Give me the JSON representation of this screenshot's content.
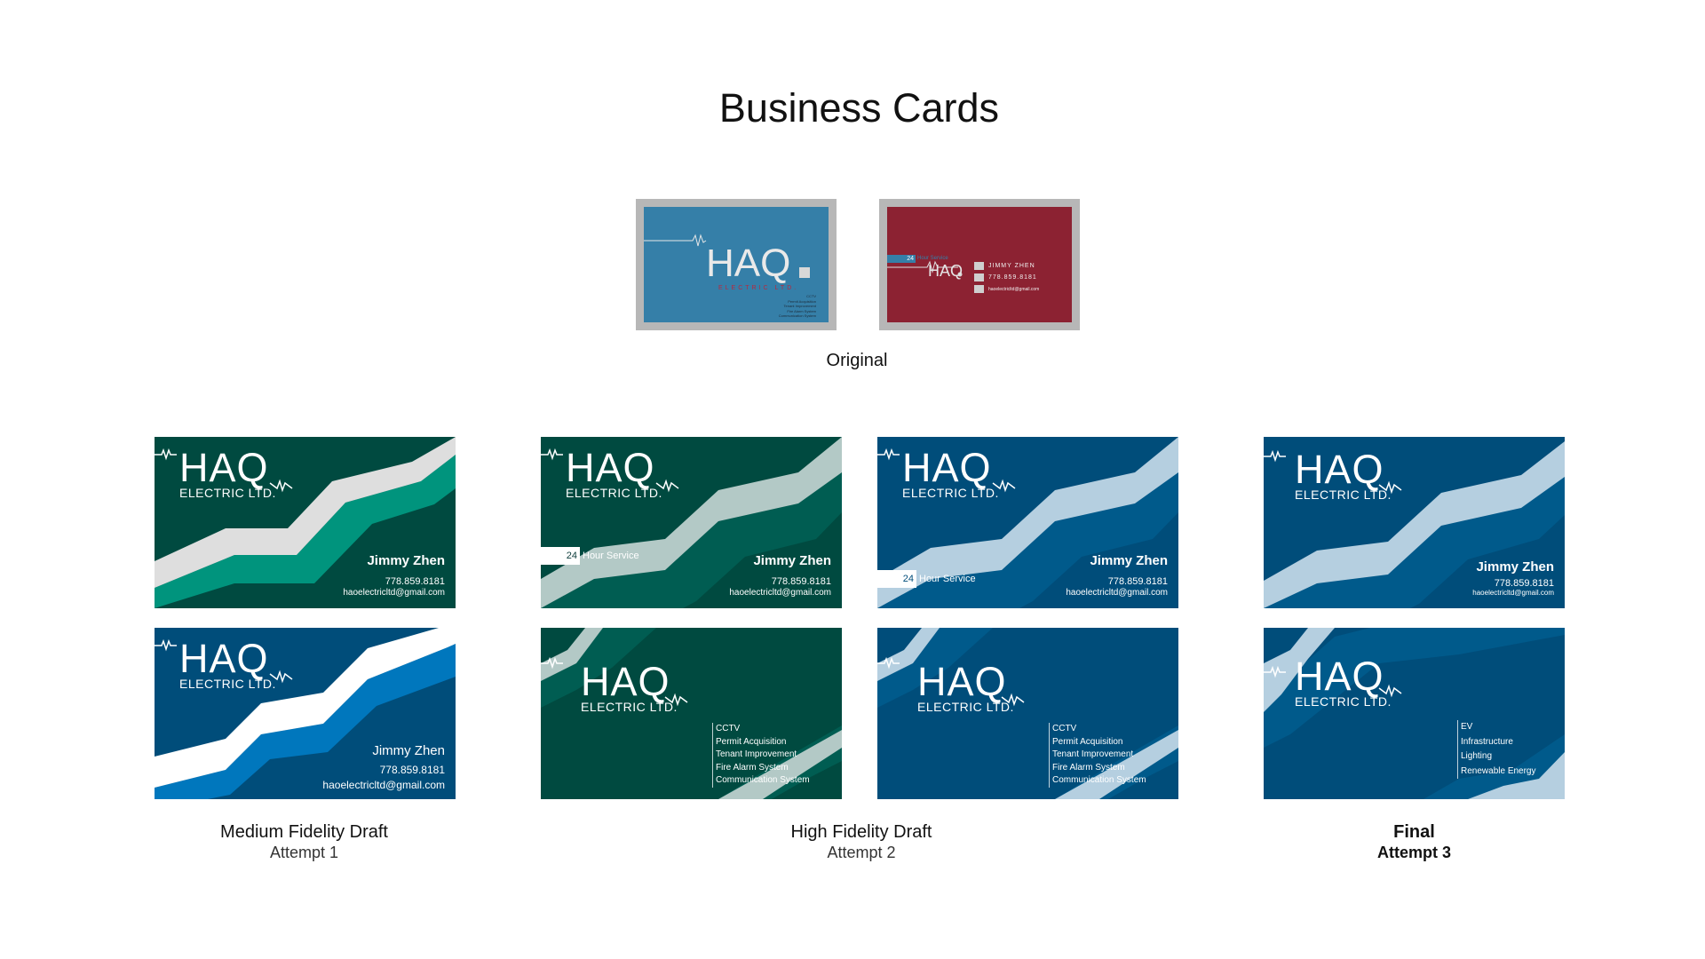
{
  "page_title": "Business Cards",
  "original": {
    "caption": "Original",
    "front": {
      "logo": "HAQ",
      "sub": "ELECTRIC LTD.",
      "services": [
        "CCTV",
        "Permit Acquisition",
        "Tenant Improvement",
        "Fire Alarm System",
        "Communication System"
      ]
    },
    "back": {
      "badge_num": "24",
      "badge_text": "Hour Service",
      "logo": "HAQ",
      "name": "JIMMY ZHEN",
      "phone": "778.859.8181",
      "email": "haoelectricltd@gmail.com"
    }
  },
  "cards": {
    "logo": "HAQ",
    "sub": "ELECTRIC LTD.",
    "name": "Jimmy Zhen",
    "phone": "778.859.8181",
    "email": "haoelectricltd@gmail.com",
    "badge_num": "24",
    "badge_text": "Hour Service",
    "services_attempt2": [
      "CCTV",
      "Permit Acquisition",
      "Tenant Improvement",
      "Fire Alarm System",
      "Communication System"
    ],
    "services_final": [
      "EV",
      "Infrastructure",
      "Lighting",
      "Renewable Energy"
    ]
  },
  "captions": {
    "attempt1_title": "Medium Fidelity Draft",
    "attempt1_sub": "Attempt 1",
    "attempt2_title": "High Fidelity Draft",
    "attempt2_sub": "Attempt 2",
    "final_title": "Final",
    "final_sub": "Attempt 3"
  },
  "colors": {
    "green_dark": "#004a40",
    "green_mid": "#005d52",
    "teal_accent": "#00947d",
    "blue_dark": "#004d7a",
    "blue_mid": "#005a8b",
    "blue_accent": "#0077bd",
    "light_band": "#dedede",
    "light_blue_band": "#b5cfe0",
    "light_green_band": "#b3c9c6",
    "orig_blue": "#357fa8",
    "orig_red": "#8c2232"
  }
}
